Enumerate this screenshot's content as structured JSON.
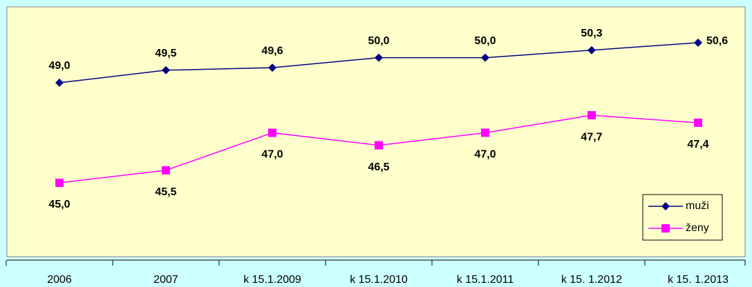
{
  "chart_data": {
    "type": "line",
    "categories": [
      "2006",
      "2007",
      "k 15.1.2009",
      "k 15.1.2010",
      "k 15.1.2011",
      "k 15. 1.2012",
      "k 15. 1.2013"
    ],
    "series": [
      {
        "name": "muži",
        "color": "#000080",
        "marker": "diamond",
        "values": [
          49.0,
          49.5,
          49.6,
          50.0,
          50.0,
          50.3,
          50.6
        ],
        "value_labels": [
          "49,0",
          "49,5",
          "49,6",
          "50,0",
          "50,0",
          "50,3",
          "50,6"
        ]
      },
      {
        "name": "ženy",
        "color": "#ff00ff",
        "marker": "square",
        "values": [
          45.0,
          45.5,
          47.0,
          46.5,
          47.0,
          47.7,
          47.4
        ],
        "value_labels": [
          "45,0",
          "45,5",
          "47,0",
          "46,5",
          "47,0",
          "47,7",
          "47,4"
        ]
      }
    ],
    "ylim": [
      42.05,
      52.03
    ],
    "legend": "bottom-right"
  }
}
